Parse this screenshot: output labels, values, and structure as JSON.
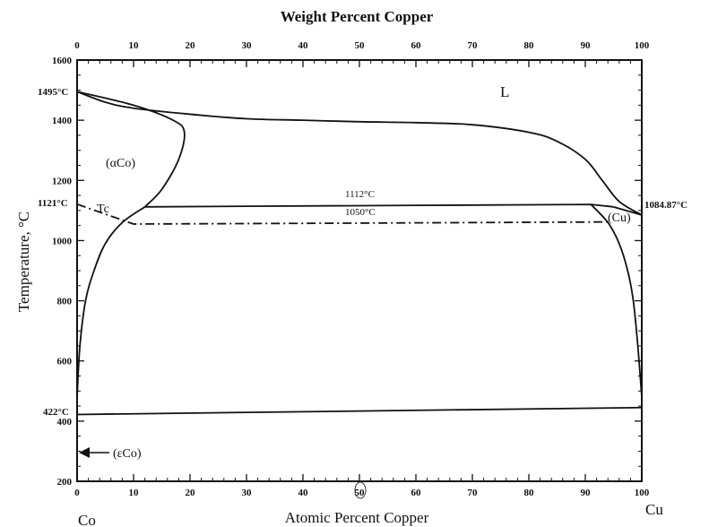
{
  "chart_data": {
    "type": "line",
    "title": "Weight Percent Copper",
    "xlabel": "Atomic Percent Copper",
    "ylabel": "Temperature, °C",
    "x_top_ticks": [
      "0",
      "10",
      "20",
      "30",
      "40",
      "50",
      "60",
      "70",
      "80",
      "90",
      "100"
    ],
    "x_bottom_ticks": [
      "0",
      "10",
      "20",
      "30",
      "40",
      "50",
      "60",
      "70",
      "80",
      "90",
      "100"
    ],
    "y_ticks": [
      "200",
      "400",
      "600",
      "800",
      "1000",
      "1200",
      "1400",
      "1600"
    ],
    "xlim": [
      0,
      100
    ],
    "ylim": [
      200,
      1600
    ],
    "grid": false,
    "end_labels": {
      "left": "Co",
      "right": "Cu"
    },
    "phase_labels": {
      "liquid": "L",
      "alpha_co": "(αCo)",
      "cu": "(Cu)",
      "epsilon_co": "(εCo)",
      "curie": "Tc"
    },
    "special_points": {
      "co_melting": "1495°C",
      "eutectic_left": "1121°C",
      "cu_melting": "1084.87°C",
      "martensitic": "422°C",
      "peritectic": "1112°C",
      "curie_line": "1050°C"
    },
    "series": [
      {
        "x": [
          0,
          5,
          10,
          20,
          30,
          40,
          50,
          60,
          70,
          80,
          85,
          90,
          93,
          96,
          100
        ],
        "y": [
          1495,
          1460,
          1440,
          1420,
          1405,
          1400,
          1395,
          1392,
          1385,
          1360,
          1330,
          1270,
          1200,
          1130,
          1085
        ]
      },
      {
        "x": [
          0,
          10,
          17,
          19,
          18,
          15,
          12
        ],
        "y": [
          1495,
          1450,
          1400,
          1360,
          1270,
          1170,
          1112
        ]
      },
      {
        "x": [
          12,
          30,
          60,
          91,
          95
        ],
        "y": [
          1112,
          1114,
          1117,
          1120,
          1112
        ]
      },
      {
        "x": [
          95,
          100
        ],
        "y": [
          1112,
          1085
        ]
      },
      {
        "x": [
          12,
          8,
          5,
          3,
          1.5,
          0.5,
          0
        ],
        "y": [
          1112,
          1060,
          990,
          900,
          800,
          650,
          480
        ]
      },
      {
        "x": [
          91,
          94,
          96,
          97.5,
          98.5,
          99.3,
          100
        ],
        "y": [
          1120,
          1060,
          990,
          900,
          800,
          650,
          480
        ]
      },
      {
        "x": [
          0,
          10,
          50,
          94
        ],
        "y": [
          1121,
          1055,
          1058,
          1062
        ]
      },
      {
        "x": [
          0,
          100
        ],
        "y": [
          422,
          445
        ]
      }
    ]
  }
}
